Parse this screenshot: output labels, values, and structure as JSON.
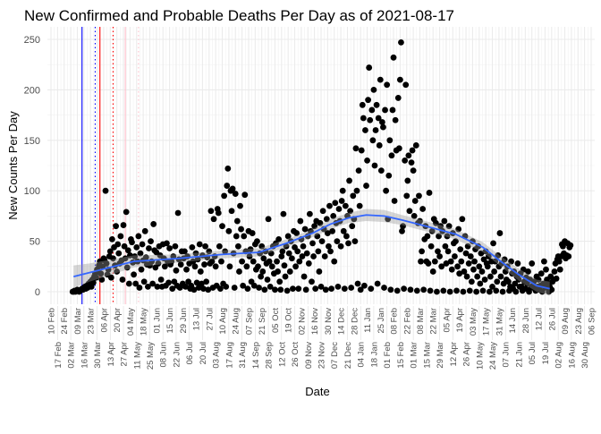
{
  "chart_data": {
    "type": "scatter",
    "title": "New Confirmed and Probable Deaths Per Day as of 2021-08-17",
    "xlabel": "Date",
    "ylabel": "New Counts Per Day",
    "ylim": [
      0,
      250
    ],
    "y_ticks": [
      0,
      50,
      100,
      150,
      200,
      250
    ],
    "x_ticks": [
      "2020-02-10",
      "2020-02-17",
      "2020-02-24",
      "2020-03-02",
      "2020-03-09",
      "2020-03-16",
      "2020-03-23",
      "2020-03-30",
      "2020-04-06",
      "2020-04-13",
      "2020-04-20",
      "2020-04-27",
      "2020-05-04",
      "2020-05-11",
      "2020-05-18",
      "2020-05-25",
      "2020-06-01",
      "2020-06-08",
      "2020-06-15",
      "2020-06-22",
      "2020-06-29",
      "2020-07-06",
      "2020-07-13",
      "2020-07-20",
      "2020-07-27",
      "2020-08-03",
      "2020-08-10",
      "2020-08-17",
      "2020-08-24",
      "2020-08-31",
      "2020-09-07",
      "2020-09-14",
      "2020-09-21",
      "2020-09-28",
      "2020-10-05",
      "2020-10-12",
      "2020-10-19",
      "2020-10-26",
      "2020-11-02",
      "2020-11-09",
      "2020-11-16",
      "2020-11-23",
      "2020-11-30",
      "2020-12-07",
      "2020-12-14",
      "2020-12-21",
      "2020-12-28",
      "2021-01-04",
      "2021-01-11",
      "2021-01-18",
      "2021-01-25",
      "2021-02-01",
      "2021-02-08",
      "2021-02-15",
      "2021-02-22",
      "2021-03-01",
      "2021-03-08",
      "2021-03-15",
      "2021-03-22",
      "2021-03-29",
      "2021-04-05",
      "2021-04-12",
      "2021-04-19",
      "2021-04-26",
      "2021-05-03",
      "2021-05-10",
      "2021-05-17",
      "2021-05-24",
      "2021-05-31",
      "2021-06-07",
      "2021-06-14",
      "2021-06-21",
      "2021-06-28",
      "2021-07-05",
      "2021-07-12",
      "2021-07-19",
      "2021-07-26",
      "2021-08-02",
      "2021-08-09",
      "2021-08-16",
      "2021-08-23",
      "2021-08-30",
      "2021-09-06"
    ],
    "grid": true,
    "colors": {
      "points": "#000000",
      "smooth_line": "#3366FF",
      "smooth_band": "#999999"
    },
    "vlines": [
      {
        "date": "2020-03-14",
        "color": "#0000FF",
        "linetype": "solid"
      },
      {
        "date": "2020-03-28",
        "color": "#0000FF",
        "linetype": "dotted"
      },
      {
        "date": "2020-04-02",
        "color": "#FF0000",
        "linetype": "solid"
      },
      {
        "date": "2020-04-16",
        "color": "#FF0000",
        "linetype": "dotted"
      },
      {
        "date": "2020-04-29",
        "color": "#FFC0CB",
        "linetype": "solid"
      },
      {
        "date": "2020-05-13",
        "color": "#FFC0CB",
        "linetype": "dotted"
      }
    ],
    "daily_values_by_week": {
      "2020-03-04": [
        0,
        0,
        1,
        0,
        1,
        2,
        1
      ],
      "2020-03-11": [
        0,
        1,
        2,
        3,
        2,
        4,
        5
      ],
      "2020-03-18": [
        3,
        6,
        4,
        8,
        7,
        10,
        5
      ],
      "2020-03-25": [
        12,
        9,
        15,
        18,
        14,
        22,
        20
      ],
      "2020-04-01": [
        26,
        30,
        18,
        12,
        25,
        33,
        31
      ],
      "2020-04-08": [
        100,
        28,
        17,
        22,
        35,
        40,
        14
      ],
      "2020-04-15": [
        52,
        33,
        44,
        26,
        65,
        20,
        47
      ],
      "2020-04-22": [
        38,
        28,
        55,
        31,
        12,
        66,
        45
      ],
      "2020-04-29": [
        33,
        79,
        24,
        41,
        8,
        36,
        52
      ],
      "2020-05-06": [
        49,
        29,
        17,
        35,
        8,
        44,
        30
      ],
      "2020-05-13": [
        55,
        4,
        38,
        22,
        47,
        31,
        10
      ],
      "2020-05-20": [
        60,
        34,
        27,
        5,
        43,
        26,
        50
      ],
      "2020-05-27": [
        30,
        8,
        67,
        41,
        24,
        39,
        5
      ],
      "2020-06-03": [
        28,
        45,
        36,
        12,
        5,
        47,
        33
      ],
      "2020-06-10": [
        25,
        6,
        48,
        30,
        9,
        43,
        27
      ],
      "2020-06-17": [
        30,
        3,
        35,
        10,
        45,
        21,
        6
      ],
      "2020-06-24": [
        78,
        32,
        4,
        27,
        40,
        8,
        33
      ],
      "2020-07-01": [
        40,
        5,
        22,
        35,
        10,
        28,
        3
      ],
      "2020-07-08": [
        6,
        44,
        30,
        2,
        25,
        38,
        9
      ],
      "2020-07-15": [
        32,
        4,
        47,
        20,
        8,
        36,
        3
      ],
      "2020-07-22": [
        27,
        45,
        10,
        34,
        2,
        40,
        28
      ],
      "2020-07-29": [
        80,
        30,
        4,
        72,
        35,
        25,
        6
      ],
      "2020-08-05": [
        82,
        78,
        45,
        3,
        30,
        65,
        8
      ],
      "2020-08-12": [
        95,
        40,
        5,
        105,
        122,
        60,
        25
      ],
      "2020-08-19": [
        100,
        80,
        102,
        38,
        4,
        97,
        55
      ],
      "2020-08-26": [
        70,
        45,
        20,
        85,
        62,
        30,
        6
      ],
      "2020-09-02": [
        55,
        96,
        40,
        25,
        3,
        60,
        35
      ],
      "2020-09-09": [
        42,
        10,
        58,
        30,
        6,
        47,
        22
      ],
      "2020-09-16": [
        50,
        25,
        4,
        38,
        15,
        45,
        20
      ],
      "2020-09-23": [
        33,
        2,
        40,
        28,
        12,
        72,
        30
      ],
      "2020-09-30": [
        5,
        38,
        25,
        45,
        18,
        2,
        48
      ],
      "2020-10-07": [
        30,
        20,
        52,
        10,
        2,
        35,
        40
      ],
      "2020-10-14": [
        77,
        26,
        15,
        45,
        1,
        55,
        38
      ],
      "2020-10-21": [
        20,
        50,
        33,
        3,
        60,
        44,
        25
      ],
      "2020-10-28": [
        58,
        40,
        3,
        30,
        70,
        52,
        35
      ],
      "2020-11-04": [
        45,
        15,
        62,
        2,
        38,
        55,
        28
      ],
      "2020-11-11": [
        77,
        60,
        10,
        48,
        35,
        65,
        3
      ],
      "2020-11-18": [
        70,
        55,
        40,
        20,
        68,
        5,
        50
      ],
      "2020-11-25": [
        80,
        62,
        35,
        2,
        72,
        58,
        45
      ],
      "2020-12-02": [
        85,
        40,
        3,
        60,
        75,
        30,
        88
      ],
      "2020-12-09": [
        68,
        50,
        5,
        82,
        70,
        45,
        90
      ],
      "2020-12-16": [
        100,
        60,
        3,
        85,
        55,
        75,
        48
      ],
      "2020-12-23": [
        110,
        80,
        4,
        65,
        95,
        72,
        50
      ],
      "2020-12-30": [
        142,
        100,
        8,
        120,
        85,
        2,
        140
      ],
      "2021-01-06": [
        185,
        172,
        6,
        160,
        105,
        130,
        190
      ],
      "2021-01-13": [
        222,
        170,
        3,
        180,
        150,
        200,
        125
      ],
      "2021-01-20": [
        160,
        185,
        8,
        172,
        145,
        210,
        120
      ],
      "2021-01-27": [
        168,
        163,
        4,
        180,
        100,
        205,
        72
      ],
      "2021-02-03": [
        115,
        150,
        2,
        135,
        180,
        232,
        90
      ],
      "2021-02-10": [
        170,
        140,
        1,
        192,
        142,
        210,
        247
      ],
      "2021-02-17": [
        60,
        65,
        3,
        130,
        205,
        95,
        110
      ],
      "2021-02-24": [
        135,
        80,
        2,
        128,
        140,
        120,
        75
      ],
      "2021-03-03": [
        90,
        145,
        1,
        68,
        95,
        70,
        30
      ],
      "2021-03-10": [
        40,
        82,
        2,
        52,
        65,
        30,
        55
      ],
      "2021-03-17": [
        28,
        98,
        1,
        45,
        60,
        20,
        72
      ],
      "2021-03-24": [
        30,
        68,
        0,
        40,
        55,
        35,
        65
      ],
      "2021-03-31": [
        25,
        60,
        1,
        70,
        45,
        28,
        55
      ],
      "2021-04-07": [
        40,
        65,
        0,
        30,
        22,
        58,
        48
      ],
      "2021-04-14": [
        35,
        50,
        1,
        25,
        62,
        18,
        42
      ],
      "2021-04-21": [
        30,
        72,
        0,
        20,
        55,
        38,
        15
      ],
      "2021-04-28": [
        45,
        28,
        1,
        35,
        10,
        50,
        22
      ],
      "2021-05-05": [
        30,
        42,
        0,
        15,
        45,
        25,
        8
      ],
      "2021-05-12": [
        38,
        20,
        1,
        32,
        12,
        40,
        28
      ],
      "2021-05-19": [
        25,
        35,
        0,
        15,
        30,
        5,
        48
      ],
      "2021-05-26": [
        20,
        30,
        1,
        10,
        36,
        25,
        58
      ],
      "2021-06-02": [
        15,
        28,
        0,
        8,
        32,
        20,
        12
      ],
      "2021-06-09": [
        25,
        10,
        1,
        5,
        30,
        18,
        3
      ],
      "2021-06-16": [
        20,
        8,
        0,
        15,
        28,
        12,
        5
      ],
      "2021-06-23": [
        18,
        5,
        1,
        22,
        10,
        3,
        14
      ],
      "2021-06-30": [
        8,
        20,
        0,
        12,
        4,
        28,
        6
      ],
      "2021-07-07": [
        10,
        3,
        1,
        15,
        5,
        12,
        2
      ],
      "2021-07-14": [
        6,
        18,
        0,
        8,
        30,
        4,
        22
      ],
      "2021-07-21": [
        12,
        8,
        0,
        5,
        15,
        2,
        10
      ],
      "2021-07-28": [
        12,
        20,
        28,
        13,
        32,
        35,
        30
      ],
      "2021-08-04": [
        22,
        35,
        47,
        45,
        38,
        50,
        33
      ],
      "2021-08-11": [
        36,
        48,
        35,
        44,
        46
      ]
    },
    "smooth": [
      {
        "date": "2020-03-05",
        "value": 15,
        "se": 11
      },
      {
        "date": "2020-03-22",
        "value": 19,
        "se": 9
      },
      {
        "date": "2020-05-08",
        "value": 30,
        "se": 6
      },
      {
        "date": "2020-06-25",
        "value": 33,
        "se": 4
      },
      {
        "date": "2020-08-11",
        "value": 37,
        "se": 4
      },
      {
        "date": "2020-09-18",
        "value": 39,
        "se": 4
      },
      {
        "date": "2020-10-17",
        "value": 48,
        "se": 4
      },
      {
        "date": "2020-11-14",
        "value": 58,
        "se": 4
      },
      {
        "date": "2020-12-03",
        "value": 67,
        "se": 5
      },
      {
        "date": "2020-12-22",
        "value": 73,
        "se": 5
      },
      {
        "date": "2021-01-10",
        "value": 76,
        "se": 6
      },
      {
        "date": "2021-01-29",
        "value": 75,
        "se": 6
      },
      {
        "date": "2021-02-17",
        "value": 71,
        "se": 5
      },
      {
        "date": "2021-03-18",
        "value": 64,
        "se": 5
      },
      {
        "date": "2021-04-15",
        "value": 57,
        "se": 5
      },
      {
        "date": "2021-05-14",
        "value": 44,
        "se": 5
      },
      {
        "date": "2021-06-02",
        "value": 30,
        "se": 5
      },
      {
        "date": "2021-06-21",
        "value": 17,
        "se": 6
      },
      {
        "date": "2021-07-10",
        "value": 6,
        "se": 6
      },
      {
        "date": "2021-07-24",
        "value": 3,
        "se": 7
      }
    ]
  }
}
